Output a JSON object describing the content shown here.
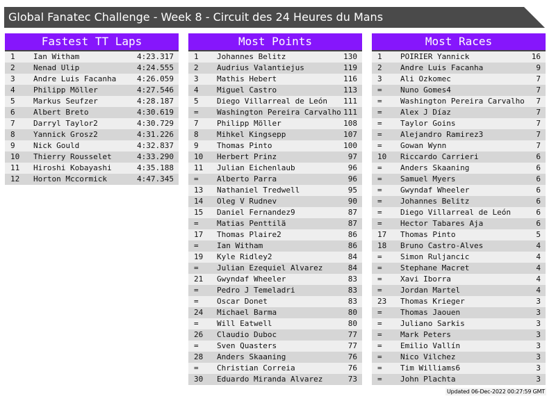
{
  "title": "Global Fanatec Challenge - Week 8 - Circuit des 24 Heures du Mans",
  "colors": {
    "header": "#8616fc",
    "title_bar": "#4a4a4a",
    "row_light": "#eeeeee",
    "row_dark": "#d6d6d6"
  },
  "panels": [
    {
      "title": "Fastest TT Laps",
      "rows": [
        [
          "1",
          "Ian Witham",
          "4:23.317"
        ],
        [
          "2",
          "Nenad Ulip",
          "4:24.555"
        ],
        [
          "3",
          "Andre Luis Facanha",
          "4:26.059"
        ],
        [
          "4",
          "Philipp Möller",
          "4:27.546"
        ],
        [
          "5",
          "Markus Seufzer",
          "4:28.187"
        ],
        [
          "6",
          "Albert Breto",
          "4:30.619"
        ],
        [
          "7",
          "Darryl Taylor2",
          "4:30.729"
        ],
        [
          "8",
          "Yannick Grosz2",
          "4:31.226"
        ],
        [
          "9",
          "Nick Gould",
          "4:32.837"
        ],
        [
          "10",
          "Thierry Rousselet",
          "4:33.290"
        ],
        [
          "11",
          "Hiroshi Kobayashi",
          "4:35.188"
        ],
        [
          "12",
          "Horton Mccormick",
          "4:47.345"
        ]
      ]
    },
    {
      "title": "Most Points",
      "rows": [
        [
          "1",
          "Johannes Belitz",
          "130"
        ],
        [
          "2",
          "Audrius Valantiejus",
          "119"
        ],
        [
          "3",
          "Mathis Hebert",
          "116"
        ],
        [
          "4",
          "Miguel Castro",
          "113"
        ],
        [
          "5",
          "Diego Villarreal de León",
          "111"
        ],
        [
          "=",
          "Washington Pereira Carvalho",
          "111"
        ],
        [
          "7",
          "Philipp Möller",
          "108"
        ],
        [
          "8",
          "Mihkel Kingsepp",
          "107"
        ],
        [
          "9",
          "Thomas Pinto",
          "100"
        ],
        [
          "10",
          "Herbert Prinz",
          "97"
        ],
        [
          "11",
          "Julian Eichenlaub",
          "96"
        ],
        [
          "=",
          "Alberto Parra",
          "96"
        ],
        [
          "13",
          "Nathaniel Tredwell",
          "95"
        ],
        [
          "14",
          "Oleg V Rudnev",
          "90"
        ],
        [
          "15",
          "Daniel Fernandez9",
          "87"
        ],
        [
          "=",
          "Matias Penttilä",
          "87"
        ],
        [
          "17",
          "Thomas Plaire2",
          "86"
        ],
        [
          "=",
          "Ian Witham",
          "86"
        ],
        [
          "19",
          "Kyle Ridley2",
          "84"
        ],
        [
          "=",
          "Julian Ezequiel Alvarez",
          "84"
        ],
        [
          "21",
          "Gwyndaf Wheeler",
          "83"
        ],
        [
          "=",
          "Pedro J Temeladri",
          "83"
        ],
        [
          "=",
          "Oscar Donet",
          "83"
        ],
        [
          "24",
          "Michael Barma",
          "80"
        ],
        [
          "=",
          "Will Eatwell",
          "80"
        ],
        [
          "26",
          "Claudio Duboc",
          "77"
        ],
        [
          "=",
          "Sven Quasters",
          "77"
        ],
        [
          "28",
          "Anders Skaaning",
          "76"
        ],
        [
          "=",
          "Christian Correia",
          "76"
        ],
        [
          "30",
          "Eduardo Miranda Alvarez",
          "73"
        ]
      ]
    },
    {
      "title": "Most Races",
      "rows": [
        [
          "1",
          "POIRIER Yannick",
          "16"
        ],
        [
          "2",
          "Andre Luis Facanha",
          "9"
        ],
        [
          "3",
          "Ali Ozkomec",
          "7"
        ],
        [
          "=",
          "Nuno Gomes4",
          "7"
        ],
        [
          "=",
          "Washington Pereira Carvalho",
          "7"
        ],
        [
          "=",
          "Alex J Díaz",
          "7"
        ],
        [
          "=",
          "Taylor Goins",
          "7"
        ],
        [
          "=",
          "Alejandro Ramirez3",
          "7"
        ],
        [
          "=",
          "Gowan Wynn",
          "7"
        ],
        [
          "10",
          "Riccardo Carrieri",
          "6"
        ],
        [
          "=",
          "Anders Skaaning",
          "6"
        ],
        [
          "=",
          "Samuel Myers",
          "6"
        ],
        [
          "=",
          "Gwyndaf Wheeler",
          "6"
        ],
        [
          "=",
          "Johannes Belitz",
          "6"
        ],
        [
          "=",
          "Diego Villarreal de León",
          "6"
        ],
        [
          "=",
          "Hector Tabares Aja",
          "6"
        ],
        [
          "17",
          "Thomas Pinto",
          "5"
        ],
        [
          "18",
          "Bruno Castro-Alves",
          "4"
        ],
        [
          "=",
          "Simon Ruljancic",
          "4"
        ],
        [
          "=",
          "Stephane Macret",
          "4"
        ],
        [
          "=",
          "Xavi Iborra",
          "4"
        ],
        [
          "=",
          "Jordan Martel",
          "4"
        ],
        [
          "23",
          "Thomas Krieger",
          "3"
        ],
        [
          "=",
          "Thomas Jaouen",
          "3"
        ],
        [
          "=",
          "Juliano Sarkis",
          "3"
        ],
        [
          "=",
          "Mark Peters",
          "3"
        ],
        [
          "=",
          "Emilio Vallín",
          "3"
        ],
        [
          "=",
          "Nico Vilchez",
          "3"
        ],
        [
          "=",
          "Tim Williams6",
          "3"
        ],
        [
          "=",
          "John Plachta",
          "3"
        ]
      ]
    }
  ],
  "updated": "Updated 06-Dec-2022 00:27:59 GMT"
}
